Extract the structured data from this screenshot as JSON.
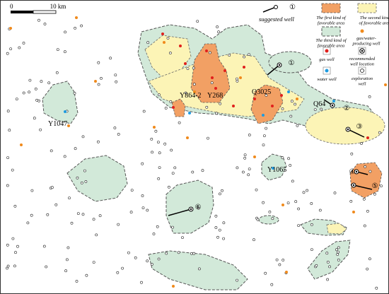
{
  "scale_bar": {
    "start": "0",
    "end": "10 km"
  },
  "legend": {
    "suggested_well": {
      "label": "suggested well",
      "symbol": "①"
    },
    "items": [
      {
        "key": "first",
        "lines": [
          "The first kind of",
          "favorable area"
        ]
      },
      {
        "key": "second",
        "lines": [
          "The second kind",
          "of favorable area"
        ]
      },
      {
        "key": "third",
        "lines": [
          "The third kind of",
          "favorable area"
        ]
      },
      {
        "key": "gaswater",
        "lines": [
          "gas/water-",
          "producing well"
        ]
      },
      {
        "key": "gas",
        "lines": [
          "gas well"
        ]
      },
      {
        "key": "recommended",
        "lines": [
          "recommended",
          "well location"
        ]
      },
      {
        "key": "water",
        "lines": [
          "water well"
        ]
      },
      {
        "key": "exploration",
        "lines": [
          "exploration",
          "well"
        ]
      }
    ]
  },
  "well_labels": [
    "Y1047",
    "Y864-2",
    "Y268",
    "Q3025",
    "Q64",
    "Y1065"
  ],
  "suggested_wells": [
    "①",
    "②",
    "③",
    "④",
    "⑤",
    "⑥"
  ]
}
